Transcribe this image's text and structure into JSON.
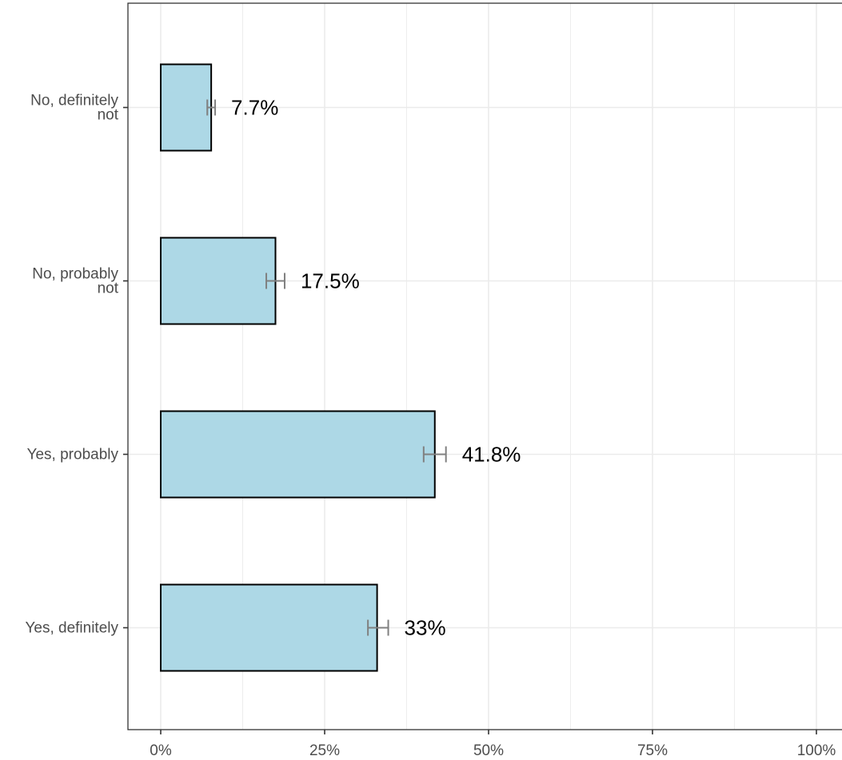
{
  "chart_data": {
    "type": "bar",
    "orientation": "horizontal",
    "categories": [
      [
        "No, definitely",
        "not"
      ],
      [
        "No, probably",
        "not"
      ],
      [
        "Yes, probably"
      ],
      [
        "Yes, definitely"
      ]
    ],
    "values": [
      7.7,
      17.5,
      41.8,
      33
    ],
    "error_low": [
      7.1,
      16.1,
      40.1,
      31.6
    ],
    "error_high": [
      8.3,
      18.9,
      43.5,
      34.7
    ],
    "data_labels": [
      "7.7%",
      "17.5%",
      "41.8%",
      "33%"
    ],
    "x_ticks": [
      0,
      25,
      50,
      75,
      100
    ],
    "x_tick_labels": [
      "0%",
      "25%",
      "50%",
      "75%",
      "100%"
    ],
    "xlim": [
      -5,
      104
    ],
    "grid": true,
    "colors": {
      "bar_fill": "#add8e6",
      "bar_stroke": "#000000",
      "error_bar": "#808080",
      "grid": "#ebebeb",
      "axis": "#333333"
    }
  }
}
